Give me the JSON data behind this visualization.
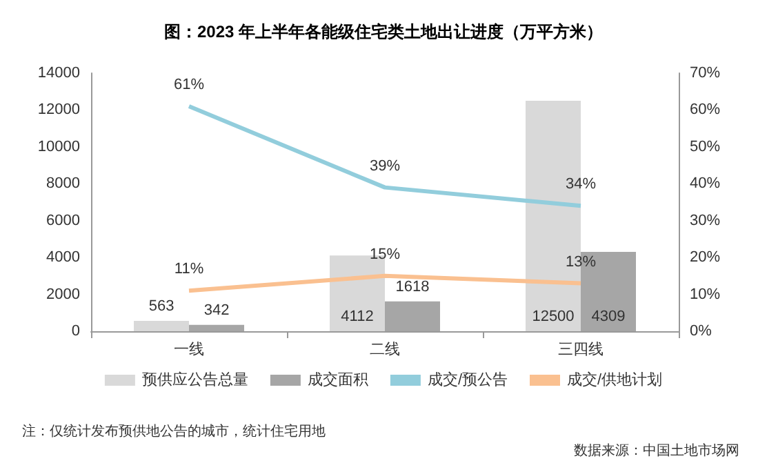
{
  "chart_data": {
    "type": "bar",
    "title": "图：2023 年上半年各能级住宅类土地出让进度（万平方米）",
    "categories": [
      "一线",
      "二线",
      "三四线"
    ],
    "series": [
      {
        "name": "预供应公告总量",
        "color": "#d9d9d9",
        "values": [
          563,
          4112,
          12500
        ],
        "value_labels": [
          "563",
          "4112",
          "12500"
        ]
      },
      {
        "name": "成交面积",
        "color": "#a6a6a6",
        "values": [
          342,
          1618,
          4309
        ],
        "value_labels": [
          "342",
          "1618",
          "4309"
        ]
      },
      {
        "name": "成交/预公告",
        "type": "line",
        "axis": "y2",
        "color": "#92cddc",
        "values": [
          61,
          39,
          34
        ],
        "value_labels": [
          "61%",
          "39%",
          "34%"
        ]
      },
      {
        "name": "成交/供地计划",
        "type": "line",
        "axis": "y2",
        "color": "#fac090",
        "values": [
          11,
          15,
          13
        ],
        "value_labels": [
          "11%",
          "15%",
          "13%"
        ]
      }
    ],
    "ylim": [
      0,
      14000
    ],
    "yticks": [
      0,
      2000,
      4000,
      6000,
      8000,
      10000,
      12000,
      14000
    ],
    "y2lim": [
      0,
      70
    ],
    "y2ticks": [
      {
        "value": 0,
        "label": "0%"
      },
      {
        "value": 10,
        "label": "10%"
      },
      {
        "value": 20,
        "label": "20%"
      },
      {
        "value": 30,
        "label": "30%"
      },
      {
        "value": 40,
        "label": "40%"
      },
      {
        "value": 50,
        "label": "50%"
      },
      {
        "value": 60,
        "label": "60%"
      },
      {
        "value": 70,
        "label": "70%"
      }
    ],
    "grid": false,
    "legend": "bottom",
    "marker": "none",
    "line_style": "solid",
    "annotations": [
      "注：仅统计发布预供地公告的城市，统计住宅用地",
      "数据来源：中国土地市场网"
    ]
  }
}
